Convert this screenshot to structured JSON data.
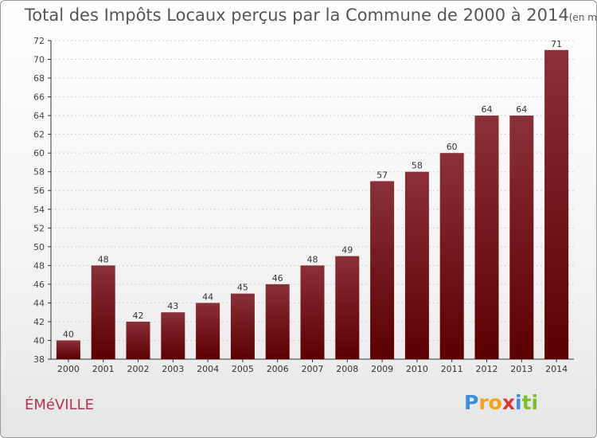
{
  "chart_data": {
    "type": "bar",
    "title": "Total des Impôts Locaux perçus par la Commune de 2000 à 2014",
    "unit_label": "(en milliers d'€)",
    "categories": [
      "2000",
      "2001",
      "2002",
      "2003",
      "2004",
      "2005",
      "2006",
      "2007",
      "2008",
      "2009",
      "2010",
      "2011",
      "2012",
      "2013",
      "2014"
    ],
    "values": [
      40,
      48,
      42,
      43,
      44,
      45,
      46,
      48,
      49,
      57,
      58,
      60,
      64,
      64,
      71
    ],
    "ylim": [
      38,
      72
    ],
    "yticks": [
      38,
      40,
      42,
      44,
      46,
      48,
      50,
      52,
      54,
      56,
      58,
      60,
      62,
      64,
      66,
      68,
      70,
      72
    ],
    "grid": true,
    "bar_color_top": "#8a3038",
    "bar_color_bottom": "#5a0000"
  },
  "commune_name": "ÉMéVILLE",
  "logo": {
    "letters": [
      "P",
      "r",
      "o",
      "x",
      "i",
      "t",
      "i"
    ],
    "colors": [
      "#3a8fd6",
      "#f2a21b",
      "#f2a21b",
      "#d63a3a",
      "#3a8fd6",
      "#7cbf2e",
      "#7cbf2e"
    ]
  }
}
